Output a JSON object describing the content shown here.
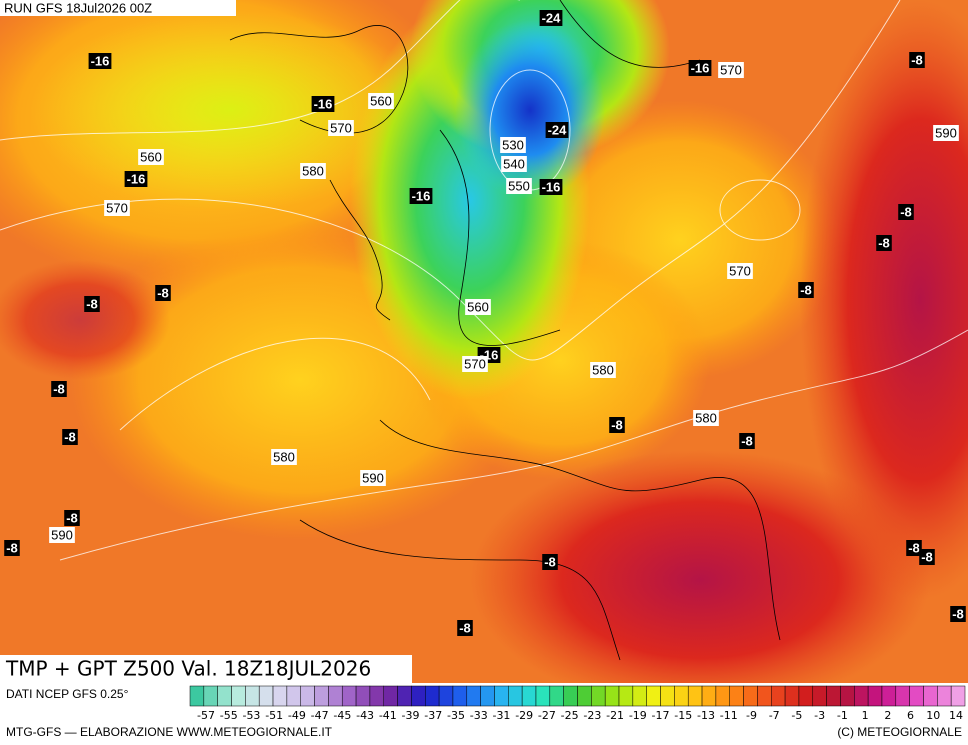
{
  "header": {
    "run": "RUN GFS 18Jul2026 00Z",
    "title": "TMP + GPT Z500 Val. 18Z18JUL2026",
    "source": "DATI NCEP GFS 0.25°",
    "credit": "MTG-GFS — ELABORAZIONE WWW.METEOGIORNALE.IT",
    "copyright": "(C) METEOGIORNALE"
  },
  "temperature_labels": [
    "-24",
    "-16",
    "-16",
    "-8",
    "-16",
    "-24",
    "-16",
    "-16",
    "-16",
    "-8",
    "-8",
    "-8",
    "-8",
    "-8",
    "-16",
    "-8",
    "-8",
    "-8",
    "-8",
    "-8",
    "-8",
    "-8",
    "-8",
    "-8",
    "-8",
    "-8"
  ],
  "height_labels": [
    "570",
    "560",
    "570",
    "590",
    "560",
    "530",
    "580",
    "540",
    "550",
    "570",
    "570",
    "560",
    "570",
    "580",
    "580",
    "580",
    "590",
    "590"
  ],
  "scale_labels": [
    "-57",
    "-55",
    "-53",
    "-51",
    "-49",
    "-47",
    "-45",
    "-43",
    "-41",
    "-39",
    "-37",
    "-35",
    "-33",
    "-31",
    "-29",
    "-27",
    "-25",
    "-23",
    "-21",
    "-19",
    "-17",
    "-15",
    "-13",
    "-11",
    "-9",
    "-7",
    "-5",
    "-3",
    "-1",
    "1",
    "2",
    "6",
    "10",
    "14"
  ]
}
